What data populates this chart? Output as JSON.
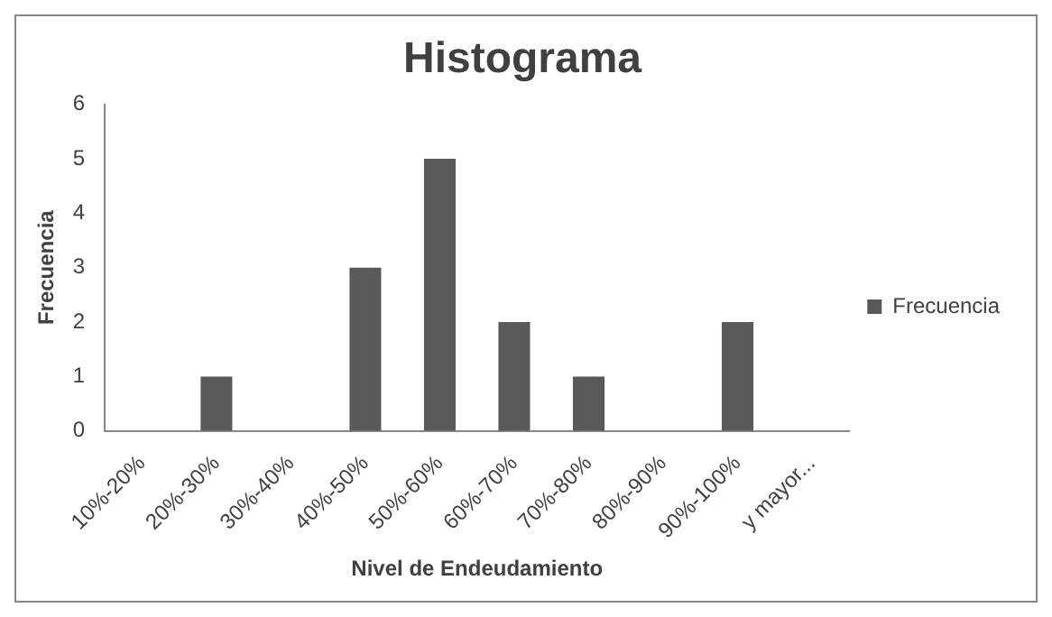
{
  "chart_data": {
    "type": "bar",
    "title": "Histograma",
    "xlabel": "Nivel de Endeudamiento",
    "ylabel": "Frecuencia",
    "categories": [
      "10%-20%",
      "20%-30%",
      "30%-40%",
      "40%-50%",
      "50%-60%",
      "60%-70%",
      "70%-80%",
      "80%-90%",
      "90%-100%",
      "y mayor..."
    ],
    "series": [
      {
        "name": "Frecuencia",
        "color": "#595959",
        "values": [
          0,
          1,
          0,
          3,
          5,
          2,
          1,
          0,
          2,
          0
        ]
      }
    ],
    "ylim": [
      0,
      6
    ],
    "yticks": [
      0,
      1,
      2,
      3,
      4,
      5,
      6
    ],
    "grid": false,
    "legend": "right"
  }
}
